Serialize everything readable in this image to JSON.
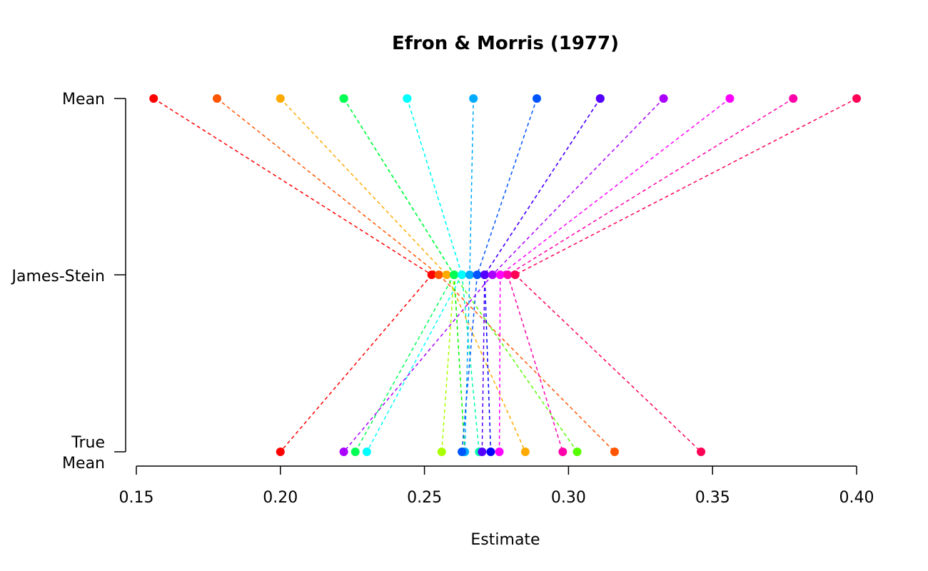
{
  "chart_data": {
    "type": "scatter",
    "title": "Efron & Morris (1977)",
    "xlabel": "Estimate",
    "ylabel": "",
    "xlim": [
      0.15,
      0.4
    ],
    "x_ticks": [
      "0.15",
      "0.20",
      "0.25",
      "0.30",
      "0.35",
      "0.40"
    ],
    "y_tick_labels": {
      "mean": "Mean",
      "james_stein": "James-Stein",
      "true_mean_line1": "True",
      "true_mean_line2": "Mean"
    },
    "grid": false,
    "players": [
      {
        "color": "#ff0000",
        "mean": 0.156,
        "james_stein": 0.2525,
        "true_mean": 0.2
      },
      {
        "color": "#ff5500",
        "mean": 0.178,
        "james_stein": 0.255,
        "true_mean": 0.316
      },
      {
        "color": "#ffaa00",
        "mean": 0.2,
        "james_stein": 0.2577,
        "true_mean": 0.285
      },
      {
        "color": "#aaff00",
        "mean": 0.222,
        "james_stein": 0.2603,
        "true_mean": 0.256
      },
      {
        "color": "#55ff00",
        "mean": 0.222,
        "james_stein": 0.2603,
        "true_mean": 0.303
      },
      {
        "color": "#00ff00",
        "mean": 0.222,
        "james_stein": 0.2603,
        "true_mean": 0.264
      },
      {
        "color": "#00ff55",
        "mean": 0.222,
        "james_stein": 0.2603,
        "true_mean": 0.226
      },
      {
        "color": "#00ffaa",
        "mean": 0.244,
        "james_stein": 0.263,
        "true_mean": 0.269
      },
      {
        "color": "#00ffff",
        "mean": 0.244,
        "james_stein": 0.263,
        "true_mean": 0.23
      },
      {
        "color": "#00aaff",
        "mean": 0.267,
        "james_stein": 0.2657,
        "true_mean": 0.264
      },
      {
        "color": "#0055ff",
        "mean": 0.289,
        "james_stein": 0.2683,
        "true_mean": 0.263
      },
      {
        "color": "#0000ff",
        "mean": 0.311,
        "james_stein": 0.2709,
        "true_mean": 0.273
      },
      {
        "color": "#5500ff",
        "mean": 0.311,
        "james_stein": 0.2709,
        "true_mean": 0.27
      },
      {
        "color": "#aa00ff",
        "mean": 0.333,
        "james_stein": 0.2736,
        "true_mean": 0.222
      },
      {
        "color": "#ff00ff",
        "mean": 0.356,
        "james_stein": 0.2763,
        "true_mean": 0.276
      },
      {
        "color": "#ff00aa",
        "mean": 0.378,
        "james_stein": 0.2789,
        "true_mean": 0.298
      },
      {
        "color": "#ff0055",
        "mean": 0.4,
        "james_stein": 0.2815,
        "true_mean": 0.346
      }
    ]
  }
}
